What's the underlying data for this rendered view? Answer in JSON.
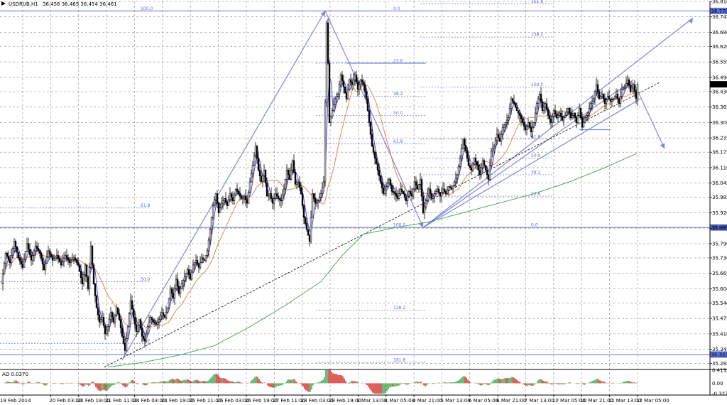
{
  "header": {
    "symbol_timeframe": "USDRUB,H1",
    "ohlc": "36.456 36.465 36.454 36.461"
  },
  "colors": {
    "candle": "#000000",
    "ma_fast": "#4a4ae0",
    "ma_mid": "#e07a3a",
    "ma_slow": "#3aa64a",
    "level_line": "#5b6fd6",
    "tool": "#7c86e0",
    "ao_up": "#2e9e3e",
    "ao_down": "#d11a1a",
    "current_price_bg": "#000000",
    "level_tag_bg": "#5b6fd6"
  },
  "chart_data": {
    "type": "candlestick",
    "ylim": [
      35.26,
      36.81
    ],
    "y_ticks": [
      "36.810",
      "36.745",
      "36.680",
      "36.620",
      "36.555",
      "36.490",
      "36.430",
      "36.365",
      "36.300",
      "36.235",
      "36.175",
      "36.110",
      "36.045",
      "35.985",
      "35.920",
      "35.855",
      "35.790",
      "35.730",
      "35.665",
      "35.600",
      "35.540",
      "35.475",
      "35.410",
      "35.345",
      "35.285"
    ],
    "x_ticks": [
      "19 Feb 2014",
      "20 Feb 03:00",
      "20 Feb 19:00",
      "21 Feb 11:00",
      "24 Feb 03:00",
      "24 Feb 19:00",
      "25 Feb 11:00",
      "26 Feb 03:00",
      "26 Feb 19:00",
      "27 Feb 11:00",
      "28 Feb 03:00",
      "28 Feb 19:00",
      "3 Mar 13:00",
      "4 Mar 05:00",
      "4 Mar 21:00",
      "5 Mar 13:00",
      "6 Mar 05:00",
      "6 Mar 21:00",
      "7 Mar 13:00",
      "10 Mar 05:00",
      "10 Mar 21:00",
      "11 Mar 13:00",
      "12 Mar 05:00"
    ],
    "current_price": "36.461",
    "horizontal_levels": [
      {
        "value": 36.77,
        "tag": "36.770"
      },
      {
        "value": 35.858,
        "tag": "35.858"
      },
      {
        "value": 35.323,
        "tag": "35.323"
      }
    ],
    "fib_left": [
      {
        "label": "100.0",
        "value": 36.77
      },
      {
        "label": "61.8",
        "value": 35.94
      },
      {
        "label": "50.0",
        "value": 35.63
      },
      {
        "label": "38.2",
        "value": 35.37
      }
    ],
    "fib_mid": [
      {
        "label": "0.0",
        "value": 36.77
      },
      {
        "label": "23.6",
        "value": 36.55
      },
      {
        "label": "38.2",
        "value": 36.41
      },
      {
        "label": "50.0",
        "value": 36.33
      },
      {
        "label": "61.8",
        "value": 36.21
      },
      {
        "label": "100.0",
        "value": 35.858
      },
      {
        "label": "138.2",
        "value": 35.51
      },
      {
        "label": "161.8",
        "value": 35.29
      }
    ],
    "fib_right": [
      {
        "label": "161.8",
        "value": 36.8
      },
      {
        "label": "138.2",
        "value": 36.66
      },
      {
        "label": "100.0",
        "value": 36.45
      },
      {
        "label": "61.8",
        "value": 36.23
      },
      {
        "label": "50.0",
        "value": 36.15
      },
      {
        "label": "38.2",
        "value": 36.08
      },
      {
        "label": "23.6",
        "value": 35.99
      },
      {
        "label": "0.0",
        "value": 35.858
      }
    ],
    "close_path": [
      [
        0,
        35.62
      ],
      [
        6,
        35.75
      ],
      [
        12,
        35.71
      ],
      [
        18,
        35.8
      ],
      [
        24,
        35.73
      ],
      [
        30,
        35.69
      ],
      [
        36,
        35.79
      ],
      [
        42,
        35.72
      ],
      [
        48,
        35.78
      ],
      [
        54,
        35.75
      ],
      [
        60,
        35.68
      ],
      [
        66,
        35.76
      ],
      [
        72,
        35.72
      ],
      [
        78,
        35.74
      ],
      [
        84,
        35.7
      ],
      [
        90,
        35.74
      ],
      [
        96,
        35.71
      ],
      [
        102,
        35.73
      ],
      [
        108,
        35.7
      ],
      [
        114,
        35.62
      ],
      [
        118,
        35.7
      ],
      [
        122,
        35.6
      ],
      [
        126,
        35.78
      ],
      [
        130,
        35.62
      ],
      [
        134,
        35.52
      ],
      [
        138,
        35.46
      ],
      [
        142,
        35.48
      ],
      [
        146,
        35.41
      ],
      [
        150,
        35.44
      ],
      [
        154,
        35.5
      ],
      [
        158,
        35.46
      ],
      [
        162,
        35.52
      ],
      [
        166,
        35.47
      ],
      [
        170,
        35.4
      ],
      [
        174,
        35.34
      ],
      [
        178,
        35.44
      ],
      [
        182,
        35.55
      ],
      [
        186,
        35.48
      ],
      [
        190,
        35.42
      ],
      [
        194,
        35.47
      ],
      [
        198,
        35.4
      ],
      [
        202,
        35.38
      ],
      [
        206,
        35.44
      ],
      [
        210,
        35.48
      ],
      [
        214,
        35.46
      ],
      [
        218,
        35.45
      ],
      [
        222,
        35.47
      ],
      [
        226,
        35.5
      ],
      [
        230,
        35.48
      ],
      [
        234,
        35.52
      ],
      [
        238,
        35.6
      ],
      [
        242,
        35.56
      ],
      [
        246,
        35.64
      ],
      [
        250,
        35.58
      ],
      [
        254,
        35.62
      ],
      [
        258,
        35.65
      ],
      [
        262,
        35.68
      ],
      [
        266,
        35.64
      ],
      [
        270,
        35.7
      ],
      [
        274,
        35.72
      ],
      [
        278,
        35.69
      ],
      [
        282,
        35.73
      ],
      [
        286,
        35.72
      ],
      [
        290,
        35.76
      ],
      [
        294,
        35.85
      ],
      [
        298,
        35.95
      ],
      [
        302,
        36.0
      ],
      [
        306,
        35.92
      ],
      [
        310,
        35.96
      ],
      [
        314,
        35.98
      ],
      [
        318,
        35.95
      ],
      [
        322,
        36.0
      ],
      [
        326,
        35.97
      ],
      [
        330,
        36.02
      ],
      [
        334,
        36.0
      ],
      [
        338,
        35.98
      ],
      [
        342,
        35.99
      ],
      [
        346,
        35.96
      ],
      [
        350,
        36.05
      ],
      [
        354,
        36.12
      ],
      [
        358,
        36.2
      ],
      [
        362,
        36.1
      ],
      [
        366,
        36.05
      ],
      [
        370,
        36.1
      ],
      [
        374,
        35.99
      ],
      [
        378,
        36.0
      ],
      [
        382,
        35.96
      ],
      [
        386,
        36.0
      ],
      [
        390,
        35.98
      ],
      [
        394,
        35.97
      ],
      [
        398,
        36.02
      ],
      [
        402,
        36.1
      ],
      [
        406,
        36.06
      ],
      [
        410,
        36.14
      ],
      [
        414,
        36.04
      ],
      [
        418,
        36.05
      ],
      [
        422,
        36.0
      ],
      [
        426,
        35.9
      ],
      [
        430,
        35.85
      ],
      [
        434,
        35.8
      ],
      [
        438,
        36.0
      ],
      [
        442,
        35.96
      ],
      [
        446,
        35.97
      ],
      [
        450,
        36.0
      ],
      [
        454,
        36.05
      ],
      [
        458,
        36.72
      ],
      [
        460,
        36.55
      ],
      [
        462,
        36.3
      ],
      [
        466,
        36.35
      ],
      [
        470,
        36.4
      ],
      [
        474,
        36.42
      ],
      [
        478,
        36.5
      ],
      [
        482,
        36.45
      ],
      [
        486,
        36.4
      ],
      [
        490,
        36.48
      ],
      [
        494,
        36.46
      ],
      [
        498,
        36.5
      ],
      [
        502,
        36.44
      ],
      [
        506,
        36.48
      ],
      [
        510,
        36.46
      ],
      [
        514,
        36.4
      ],
      [
        518,
        36.3
      ],
      [
        522,
        36.2
      ],
      [
        526,
        36.15
      ],
      [
        530,
        36.1
      ],
      [
        534,
        36.05
      ],
      [
        538,
        36.0
      ],
      [
        542,
        36.03
      ],
      [
        546,
        36.06
      ],
      [
        550,
        36.01
      ],
      [
        554,
        36.0
      ],
      [
        558,
        35.98
      ],
      [
        562,
        36.02
      ],
      [
        566,
        36.0
      ],
      [
        570,
        35.97
      ],
      [
        574,
        36.01
      ],
      [
        578,
        35.99
      ],
      [
        582,
        36.05
      ],
      [
        586,
        36.02
      ],
      [
        590,
        36.06
      ],
      [
        594,
        35.92
      ],
      [
        598,
        35.97
      ],
      [
        602,
        36.02
      ],
      [
        606,
        35.98
      ],
      [
        610,
        36.0
      ],
      [
        614,
        36.02
      ],
      [
        618,
        35.99
      ],
      [
        622,
        36.02
      ],
      [
        626,
        36.0
      ],
      [
        630,
        36.03
      ],
      [
        634,
        36.02
      ],
      [
        638,
        36.05
      ],
      [
        642,
        36.08
      ],
      [
        646,
        36.15
      ],
      [
        650,
        36.23
      ],
      [
        654,
        36.18
      ],
      [
        658,
        36.12
      ],
      [
        662,
        36.1
      ],
      [
        666,
        36.15
      ],
      [
        670,
        36.12
      ],
      [
        674,
        36.08
      ],
      [
        678,
        36.14
      ],
      [
        682,
        36.1
      ],
      [
        686,
        36.06
      ],
      [
        690,
        36.18
      ],
      [
        694,
        36.2
      ],
      [
        698,
        36.25
      ],
      [
        702,
        36.22
      ],
      [
        706,
        36.28
      ],
      [
        710,
        36.3
      ],
      [
        714,
        36.32
      ],
      [
        718,
        36.4
      ],
      [
        722,
        36.38
      ],
      [
        726,
        36.35
      ],
      [
        730,
        36.33
      ],
      [
        734,
        36.3
      ],
      [
        738,
        36.27
      ],
      [
        742,
        36.3
      ],
      [
        746,
        36.26
      ],
      [
        750,
        36.3
      ],
      [
        754,
        36.38
      ],
      [
        758,
        36.42
      ],
      [
        762,
        36.35
      ],
      [
        766,
        36.38
      ],
      [
        770,
        36.33
      ],
      [
        774,
        36.3
      ],
      [
        778,
        36.35
      ],
      [
        782,
        36.32
      ],
      [
        786,
        36.34
      ],
      [
        790,
        36.31
      ],
      [
        794,
        36.33
      ],
      [
        798,
        36.36
      ],
      [
        802,
        36.32
      ],
      [
        806,
        36.34
      ],
      [
        810,
        36.3
      ],
      [
        814,
        36.36
      ],
      [
        818,
        36.28
      ],
      [
        822,
        36.32
      ],
      [
        826,
        36.34
      ],
      [
        830,
        36.38
      ],
      [
        834,
        36.4
      ],
      [
        838,
        36.46
      ],
      [
        842,
        36.4
      ],
      [
        846,
        36.42
      ],
      [
        850,
        36.38
      ],
      [
        854,
        36.41
      ],
      [
        858,
        36.39
      ],
      [
        862,
        36.4
      ],
      [
        866,
        36.42
      ],
      [
        870,
        36.38
      ],
      [
        874,
        36.44
      ],
      [
        878,
        36.45
      ],
      [
        882,
        36.48
      ],
      [
        886,
        36.43
      ],
      [
        890,
        36.46
      ],
      [
        894,
        36.4
      ],
      [
        896,
        36.461
      ]
    ],
    "sma_slow_path": [
      [
        150,
        35.27
      ],
      [
        200,
        35.29
      ],
      [
        250,
        35.32
      ],
      [
        300,
        35.36
      ],
      [
        350,
        35.44
      ],
      [
        400,
        35.53
      ],
      [
        450,
        35.63
      ],
      [
        480,
        35.74
      ],
      [
        510,
        35.83
      ],
      [
        560,
        35.86
      ],
      [
        600,
        35.88
      ],
      [
        650,
        35.92
      ],
      [
        700,
        35.96
      ],
      [
        750,
        36.0
      ],
      [
        800,
        36.05
      ],
      [
        850,
        36.11
      ],
      [
        895,
        36.17
      ]
    ]
  },
  "oscillator": {
    "label": "AO 0.0370",
    "y_ticks": [
      "0.4132",
      "0.00",
      "-0.3279"
    ]
  }
}
